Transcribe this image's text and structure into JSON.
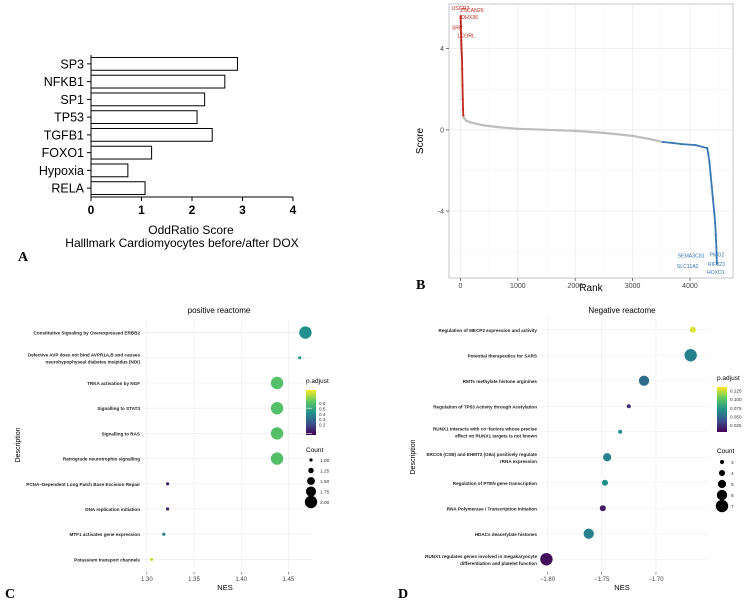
{
  "panels": {
    "a": "A",
    "b": "B",
    "c": "C",
    "d": "D"
  },
  "chart_data": [
    {
      "id": "a",
      "type": "bar",
      "orientation": "horizontal",
      "categories": [
        "SP3",
        "NFKB1",
        "SP1",
        "TP53",
        "TGFB1",
        "FOXO1",
        "Hypoxia",
        "RELA"
      ],
      "values": [
        2.9,
        2.65,
        2.25,
        2.1,
        2.4,
        1.2,
        0.73,
        1.07
      ],
      "xlabel": "OddRatio   Score",
      "subtitle": "Halllmark Cardiomyocytes before/after DOX",
      "xlim": [
        0,
        4
      ],
      "xticks": [
        "0",
        "1",
        "2",
        "3",
        "4"
      ]
    },
    {
      "id": "b",
      "type": "scatter",
      "xlabel": "Rank",
      "ylabel": "Score",
      "xlim": [
        -200,
        4750
      ],
      "ylim": [
        -7.3,
        6.2
      ],
      "xticks": [
        0,
        1000,
        2000,
        3000,
        4000
      ],
      "yticks": [
        -4,
        0,
        4
      ],
      "series": [
        {
          "name": "positive",
          "color": "#c0281f",
          "x": [
            2,
            4,
            6,
            8,
            10,
            12,
            14,
            16,
            18,
            22,
            26,
            30,
            35,
            40,
            45,
            50
          ],
          "y": [
            5.6,
            5.5,
            5.3,
            5.1,
            4.8,
            4.6,
            4.4,
            4.2,
            4.0,
            3.8,
            3.5,
            3.0,
            2.2,
            1.5,
            1.0,
            0.7
          ]
        },
        {
          "name": "neutral",
          "color": "#bdbdbd",
          "x": [
            60,
            100,
            200,
            400,
            700,
            1000,
            1500,
            2000,
            2500,
            3000,
            3300,
            3450,
            3520
          ],
          "y": [
            0.6,
            0.45,
            0.35,
            0.22,
            0.12,
            0.05,
            0.0,
            -0.05,
            -0.15,
            -0.3,
            -0.45,
            -0.55,
            -0.6
          ]
        },
        {
          "name": "negative",
          "color": "#3a78b5",
          "x": [
            3530,
            3700,
            3840,
            4100,
            4300,
            4320,
            4340,
            4360,
            4380,
            4400,
            4420,
            4440,
            4450,
            4460,
            4470
          ],
          "y": [
            -0.6,
            -0.65,
            -0.7,
            -0.75,
            -0.9,
            -1.2,
            -1.6,
            -2.2,
            -2.8,
            -3.4,
            -4.0,
            -4.6,
            -5.2,
            -5.8,
            -6.6
          ]
        }
      ],
      "labels": [
        {
          "text": "USGR2",
          "color": "#c0281f",
          "x": 0,
          "y": 5.9
        },
        {
          "text": "ZSCAN26",
          "color": "#c0281f",
          "x": 200,
          "y": 5.8
        },
        {
          "text": "DHX36",
          "color": "#c0281f",
          "x": 160,
          "y": 5.45
        },
        {
          "text": "SRF",
          "color": "#c0281f",
          "x": -60,
          "y": 4.95
        },
        {
          "text": "LCORL",
          "color": "#c0281f",
          "x": 100,
          "y": 4.55
        },
        {
          "text": "SEMA3C81",
          "color": "#3a78b5",
          "x": 4020,
          "y": -6.3
        },
        {
          "text": "SLC11A2",
          "color": "#3a78b5",
          "x": 3960,
          "y": -6.8
        },
        {
          "text": "PMG2",
          "color": "#3a78b5",
          "x": 4470,
          "y": -6.25
        },
        {
          "text": "RIF323",
          "color": "#3a78b5",
          "x": 4460,
          "y": -6.7
        },
        {
          "text": "HOXD1",
          "color": "#3a78b5",
          "x": 4450,
          "y": -7.1
        }
      ]
    },
    {
      "id": "c",
      "type": "scatter",
      "title": "positive reactome",
      "xlabel": "NES",
      "ylabel": "Description",
      "xlim": [
        1.297,
        1.475
      ],
      "xticks": [
        1.3,
        1.35,
        1.4,
        1.45
      ],
      "xtick_labels": [
        "1.30",
        "1.35",
        "1.40",
        "1.45"
      ],
      "categories": [
        "Constitutive Signaling by Overexpressed ERBB2",
        "Defective AVP does not bind AVPR1A,B and causes\nneurohypophyseal diabetes insipidus (NDI)",
        "TRKA activation by NGF",
        "Signalling to STAT3",
        "Signalling to RAS",
        "Retrograde neurotrophin signalling",
        "PCNA−Dependent Long Patch Base Excision Repair",
        "DNA replication initiation",
        "MTF1 activates gene expression",
        "Potassium transport channels"
      ],
      "nes": [
        1.468,
        1.462,
        1.438,
        1.438,
        1.438,
        1.438,
        1.322,
        1.322,
        1.318,
        1.305
      ],
      "count": [
        2,
        1,
        2,
        2,
        2,
        2,
        1,
        1,
        1,
        1
      ],
      "p_adjust": [
        0.42,
        0.45,
        0.6,
        0.6,
        0.6,
        0.6,
        0.08,
        0.08,
        0.35,
        0.78
      ],
      "legend": {
        "color_title": "p.adjust",
        "color_range": [
          0.0,
          0.85
        ],
        "color_ticks": [
          "0.6",
          "0.5",
          "0.4",
          "0.3",
          "0.2"
        ],
        "color_tick_values": [
          0.6,
          0.5,
          0.4,
          0.3,
          0.2
        ],
        "size_title": "Count",
        "size_labels": [
          "1.00",
          "1.25",
          "1.50",
          "1.75",
          "2.00"
        ],
        "size_values": [
          1.0,
          1.25,
          1.5,
          1.75,
          2.0
        ]
      }
    },
    {
      "id": "d",
      "type": "scatter",
      "title": "Negative reactome",
      "xlabel": "NES",
      "ylabel": "Description",
      "xlim": [
        -1.806,
        -1.652
      ],
      "xticks": [
        -1.8,
        -1.75,
        -1.7
      ],
      "xtick_labels": [
        "−1.80",
        "−1.75",
        "−1.70"
      ],
      "categories": [
        "Regulation of MECP2 expression and activity",
        "Potential therapeutics for SARS",
        "RMTs methylate histone arginines",
        "Regulation of TP53 Activity through Acetylation",
        "RUNX1 interacts with co−factors whose precise\neffect on RUNX1 targets is not known",
        "ERCC6 (CSB) and EHMT2 (G9a) positively regulate\nrRNA expression",
        "Regulation of PTEN gene transcription",
        "RNA Polymerase I Transcription Initiation",
        "HDACs deacetylate histones",
        "RUNX1 regulates genes involved in megakaryocyte\ndifferentiation and platelet function"
      ],
      "nes": [
        -1.666,
        -1.668,
        -1.711,
        -1.725,
        -1.733,
        -1.745,
        -1.747,
        -1.749,
        -1.762,
        -1.801
      ],
      "count": [
        4,
        7,
        6,
        3,
        3,
        5,
        4,
        4,
        6,
        7
      ],
      "p_adjust": [
        0.128,
        0.062,
        0.052,
        0.022,
        0.068,
        0.062,
        0.07,
        0.015,
        0.062,
        0.01
      ],
      "legend": {
        "color_title": "p.adjust",
        "color_range": [
          0.005,
          0.135
        ],
        "color_ticks": [
          "0.125",
          "0.100",
          "0.075",
          "0.050",
          "0.025"
        ],
        "color_tick_values": [
          0.125,
          0.1,
          0.075,
          0.05,
          0.025
        ],
        "size_title": "Count",
        "size_labels": [
          "3",
          "4",
          "5",
          "6",
          "7"
        ],
        "size_values": [
          3,
          4,
          5,
          6,
          7
        ]
      }
    }
  ]
}
